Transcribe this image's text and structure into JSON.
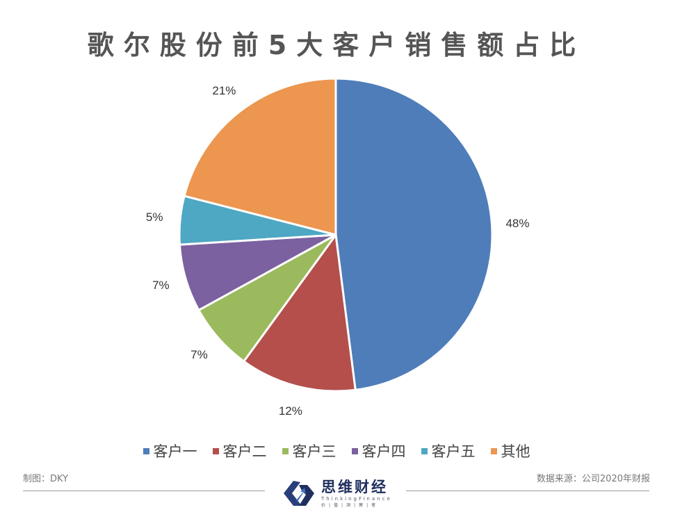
{
  "title": "歌尔股份前5大客户销售额占比",
  "chart_data": {
    "type": "pie",
    "title": "歌尔股份前5大客户销售额占比",
    "start_angle": "12 o'clock, clockwise",
    "categories": [
      "客户一",
      "客户二",
      "客户三",
      "客户四",
      "客户五",
      "其他"
    ],
    "values": [
      48,
      12,
      7,
      7,
      5,
      21
    ],
    "labels": [
      "48%",
      "12%",
      "7%",
      "7%",
      "5%",
      "21%"
    ],
    "colors": [
      "#4F7DB9",
      "#B44F4C",
      "#9BBA5D",
      "#7B61A0",
      "#4EA7C3",
      "#EC9650"
    ],
    "legend_position": "bottom"
  },
  "legend": [
    {
      "label": "客户一",
      "color": "#4F7DB9"
    },
    {
      "label": "客户二",
      "color": "#B44F4C"
    },
    {
      "label": "客户三",
      "color": "#9BBA5D"
    },
    {
      "label": "客户四",
      "color": "#7B61A0"
    },
    {
      "label": "客户五",
      "color": "#4EA7C3"
    },
    {
      "label": "其他",
      "color": "#EC9650"
    }
  ],
  "footer": {
    "author": "制图：DKY",
    "source": "数据来源：公司2020年财报",
    "logo_cn": "思维财经",
    "logo_en": "ThinkingFinance",
    "logo_sub": "价|值|洞|察|者"
  }
}
